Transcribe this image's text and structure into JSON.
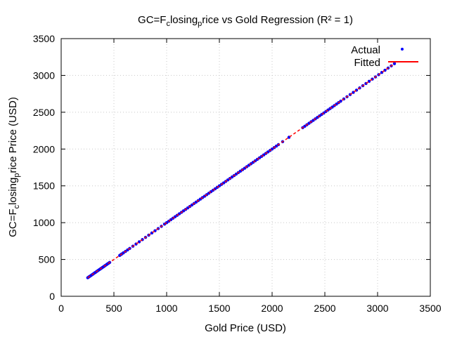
{
  "chart_data": {
    "type": "scatter",
    "title_parts": [
      "GC=F",
      "c",
      "losing",
      "p",
      "rice vs Gold Regression (R² = 1)"
    ],
    "xlabel": "Gold Price (USD)",
    "ylabel_parts": [
      "GC=F",
      "c",
      "losing",
      "p",
      "rice Price (USD)"
    ],
    "xlim": [
      0,
      3500
    ],
    "ylim": [
      0,
      3500
    ],
    "xticks": [
      "0",
      "500",
      "1000",
      "1500",
      "2000",
      "2500",
      "3000",
      "3500"
    ],
    "yticks": [
      "0",
      "500",
      "1000",
      "1500",
      "2000",
      "2500",
      "3000",
      "3500"
    ],
    "grid": true,
    "legend_position": "top-right",
    "series": [
      {
        "name": "Actual",
        "kind": "points",
        "color": "#0000ff",
        "x": [
          252,
          260,
          270,
          280,
          290,
          300,
          310,
          320,
          330,
          340,
          350,
          360,
          370,
          380,
          390,
          400,
          410,
          420,
          430,
          440,
          450,
          460,
          555,
          565,
          575,
          590,
          610,
          630,
          650,
          680,
          710,
          740,
          770,
          800,
          830,
          860,
          890,
          920,
          950,
          980,
          1000,
          1020,
          1040,
          1060,
          1080,
          1100,
          1120,
          1140,
          1160,
          1180,
          1200,
          1220,
          1240,
          1260,
          1280,
          1300,
          1320,
          1340,
          1360,
          1380,
          1400,
          1420,
          1440,
          1460,
          1480,
          1500,
          1520,
          1540,
          1560,
          1580,
          1600,
          1620,
          1640,
          1660,
          1680,
          1700,
          1720,
          1740,
          1760,
          1780,
          1800,
          1820,
          1840,
          1860,
          1880,
          1900,
          1920,
          1940,
          1960,
          1980,
          2000,
          2020,
          2040,
          2060,
          2100,
          2160,
          2290,
          2310,
          2330,
          2350,
          2370,
          2390,
          2410,
          2430,
          2450,
          2470,
          2490,
          2510,
          2530,
          2550,
          2570,
          2590,
          2610,
          2630,
          2650,
          2680,
          2710,
          2740,
          2770,
          2800,
          2830,
          2860,
          2890,
          2920,
          2950,
          2980,
          3010,
          3040,
          3070,
          3100,
          3130,
          3160
        ],
        "y": [
          252,
          260,
          270,
          280,
          290,
          300,
          310,
          320,
          330,
          340,
          350,
          360,
          370,
          380,
          390,
          400,
          410,
          420,
          430,
          440,
          450,
          460,
          555,
          565,
          575,
          590,
          610,
          630,
          650,
          680,
          710,
          740,
          770,
          800,
          830,
          860,
          890,
          920,
          950,
          980,
          1000,
          1020,
          1040,
          1060,
          1080,
          1100,
          1120,
          1140,
          1160,
          1180,
          1200,
          1220,
          1240,
          1260,
          1280,
          1300,
          1320,
          1340,
          1360,
          1380,
          1400,
          1420,
          1440,
          1460,
          1480,
          1500,
          1520,
          1540,
          1560,
          1580,
          1600,
          1620,
          1640,
          1660,
          1680,
          1700,
          1720,
          1740,
          1760,
          1780,
          1800,
          1820,
          1840,
          1860,
          1880,
          1900,
          1920,
          1940,
          1960,
          1980,
          2000,
          2020,
          2040,
          2060,
          2100,
          2160,
          2290,
          2310,
          2330,
          2350,
          2370,
          2390,
          2410,
          2430,
          2450,
          2470,
          2490,
          2510,
          2530,
          2550,
          2570,
          2590,
          2610,
          2630,
          2650,
          2680,
          2710,
          2740,
          2770,
          2800,
          2830,
          2860,
          2890,
          2920,
          2950,
          2980,
          3010,
          3040,
          3070,
          3100,
          3130,
          3160
        ]
      },
      {
        "name": "Fitted",
        "kind": "line",
        "color": "#ff0000",
        "x": [
          252,
          3160
        ],
        "y": [
          252,
          3160
        ]
      }
    ]
  }
}
